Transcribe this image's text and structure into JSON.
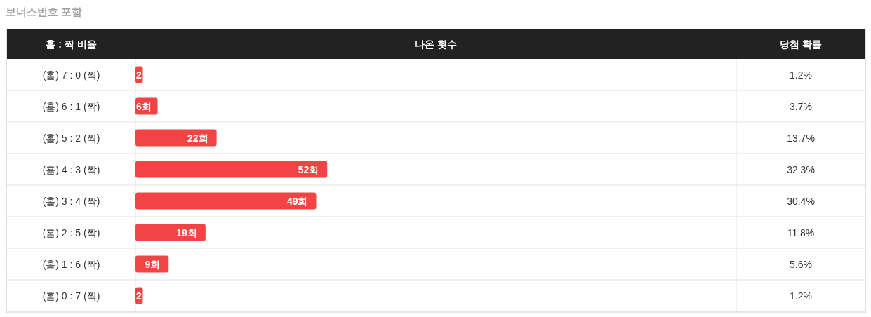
{
  "chart_data": {
    "type": "bar",
    "orientation": "horizontal",
    "title": "보너스번호 포함",
    "ylabel": "홀 : 짝 비율",
    "categories": [
      "(홀) 7 : 0 (짝)",
      "(홀) 6 : 1 (짝)",
      "(홀) 5 : 2 (짝)",
      "(홀) 4 : 3 (짝)",
      "(홀) 3 : 4 (짝)",
      "(홀) 2 : 5 (짝)",
      "(홀) 1 : 6 (짝)",
      "(홀) 0 : 7 (짝)"
    ],
    "values": [
      2,
      6,
      22,
      52,
      49,
      19,
      9,
      2
    ],
    "color": "#f24444",
    "value_labels": [
      "2",
      "6회",
      "22회",
      "52회",
      "49회",
      "19회",
      "9회",
      "2"
    ],
    "annotations": [
      "나온 횟수",
      "당첨 확률",
      "1.2%",
      "3.7%",
      "13.7%",
      "32.3%",
      "30.4%",
      "11.8%",
      "5.6%",
      "1.2%"
    ]
  }
}
